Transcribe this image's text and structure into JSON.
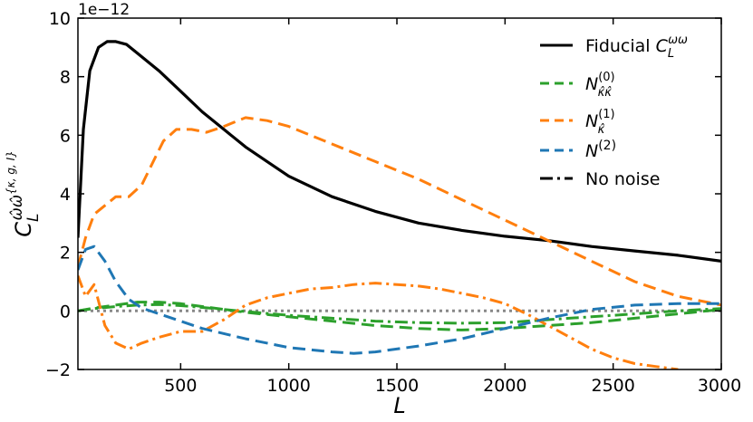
{
  "chart_data": {
    "type": "line",
    "title": "",
    "xlabel": "L",
    "ylabel": "C_L^{ω̂ω̂^{κ,g,I}}",
    "y_offset_label": "1e−12",
    "xlim": [
      25,
      3000
    ],
    "ylim": [
      -2,
      10
    ],
    "xticks": [
      500,
      1000,
      1500,
      2000,
      2500,
      3000
    ],
    "yticks": [
      -2,
      0,
      2,
      4,
      6,
      8,
      10
    ],
    "xtick_labels": [
      "500",
      "1000",
      "1500",
      "2000",
      "2500",
      "3000"
    ],
    "ytick_labels": [
      "−2",
      "0",
      "2",
      "4",
      "6",
      "8",
      "10"
    ],
    "legend_position": "upper right",
    "grid": false,
    "legend": [
      {
        "label": "Fiducial",
        "math": "C_L^{ωω}",
        "color": "#000000",
        "style": "solid"
      },
      {
        "label": "N",
        "math": "_{κ̂κ̂}^{(0)}",
        "color": "#2ca02c",
        "style": "dashed"
      },
      {
        "label": "N",
        "math": "_{κ̂}^{(1)}",
        "color": "#ff7f0e",
        "style": "dashed"
      },
      {
        "label": "N",
        "math": "^{(2)}",
        "color": "#1f77b4",
        "style": "dashed"
      },
      {
        "label": "No noise",
        "math": "",
        "color": "#000000",
        "style": "dashdot"
      }
    ],
    "series": [
      {
        "name": "Fiducial C_L^ωω",
        "color": "#000000",
        "style": "solid",
        "x": [
          25,
          50,
          80,
          120,
          160,
          200,
          250,
          300,
          400,
          500,
          600,
          700,
          800,
          900,
          1000,
          1200,
          1400,
          1600,
          1800,
          2000,
          2200,
          2400,
          2600,
          2800,
          3000
        ],
        "y": [
          2.5,
          6.2,
          8.2,
          9.0,
          9.2,
          9.2,
          9.1,
          8.8,
          8.2,
          7.5,
          6.8,
          6.2,
          5.6,
          5.1,
          4.6,
          3.9,
          3.4,
          3.0,
          2.75,
          2.55,
          2.4,
          2.2,
          2.05,
          1.9,
          1.7
        ]
      },
      {
        "name": "N^(0) κ̂κ̂ (dashed)",
        "color": "#2ca02c",
        "style": "dashed",
        "x": [
          25,
          100,
          200,
          300,
          400,
          500,
          600,
          700,
          800,
          1000,
          1200,
          1400,
          1600,
          1800,
          2000,
          2200,
          2400,
          2600,
          2800,
          3000
        ],
        "y": [
          0.0,
          0.1,
          0.2,
          0.3,
          0.3,
          0.25,
          0.15,
          0.05,
          -0.05,
          -0.2,
          -0.35,
          -0.5,
          -0.6,
          -0.65,
          -0.6,
          -0.5,
          -0.4,
          -0.25,
          -0.1,
          0.05
        ]
      },
      {
        "name": "N^(0) κ̂κ̂ (dash-dot)",
        "color": "#2ca02c",
        "style": "dashdot",
        "x": [
          25,
          100,
          200,
          300,
          400,
          500,
          600,
          700,
          800,
          1000,
          1200,
          1400,
          1600,
          1800,
          2000,
          2200,
          2400,
          2600,
          2800,
          3000
        ],
        "y": [
          0.0,
          0.08,
          0.15,
          0.2,
          0.22,
          0.18,
          0.12,
          0.05,
          -0.02,
          -0.15,
          -0.25,
          -0.35,
          -0.4,
          -0.42,
          -0.4,
          -0.3,
          -0.2,
          -0.1,
          0.0,
          0.08
        ]
      },
      {
        "name": "N^(1) κ̂ (dashed)",
        "color": "#ff7f0e",
        "style": "dashed",
        "x": [
          25,
          60,
          100,
          150,
          200,
          260,
          320,
          380,
          420,
          480,
          550,
          620,
          700,
          800,
          900,
          1000,
          1200,
          1400,
          1600,
          1800,
          2000,
          2200,
          2400,
          2600,
          2800,
          3000
        ],
        "y": [
          1.5,
          2.5,
          3.3,
          3.6,
          3.9,
          3.9,
          4.3,
          5.2,
          5.8,
          6.2,
          6.2,
          6.1,
          6.3,
          6.6,
          6.5,
          6.3,
          5.7,
          5.1,
          4.5,
          3.8,
          3.1,
          2.4,
          1.7,
          1.0,
          0.5,
          0.2
        ]
      },
      {
        "name": "N^(1) κ̂ (dash-dot)",
        "color": "#ff7f0e",
        "style": "dashdot",
        "x": [
          25,
          60,
          100,
          150,
          200,
          260,
          320,
          400,
          500,
          600,
          700,
          800,
          900,
          1000,
          1100,
          1200,
          1300,
          1400,
          1500,
          1600,
          1700,
          1800,
          1900,
          2000,
          2100,
          2200,
          2300,
          2400,
          2500,
          2600,
          2700,
          2800
        ],
        "y": [
          1.2,
          0.5,
          0.9,
          -0.5,
          -1.1,
          -1.3,
          -1.1,
          -0.9,
          -0.7,
          -0.7,
          -0.3,
          0.2,
          0.45,
          0.6,
          0.75,
          0.8,
          0.9,
          0.95,
          0.9,
          0.85,
          0.75,
          0.6,
          0.45,
          0.25,
          -0.1,
          -0.5,
          -0.9,
          -1.3,
          -1.6,
          -1.8,
          -1.9,
          -2.0
        ]
      },
      {
        "name": "N^(2)",
        "color": "#1f77b4",
        "style": "dashed",
        "x": [
          25,
          60,
          100,
          150,
          200,
          260,
          320,
          400,
          500,
          600,
          800,
          1000,
          1200,
          1300,
          1400,
          1600,
          1800,
          2000,
          2200,
          2400,
          2600,
          2800,
          3000
        ],
        "y": [
          1.4,
          2.1,
          2.2,
          1.7,
          1.0,
          0.4,
          0.1,
          -0.1,
          -0.35,
          -0.6,
          -0.95,
          -1.25,
          -1.4,
          -1.45,
          -1.4,
          -1.2,
          -0.95,
          -0.6,
          -0.25,
          0.05,
          0.2,
          0.25,
          0.25
        ]
      },
      {
        "name": "No noise",
        "color": "#888888",
        "style": "dotted",
        "x": [
          25,
          3000
        ],
        "y": [
          0.0,
          0.0
        ]
      }
    ]
  }
}
